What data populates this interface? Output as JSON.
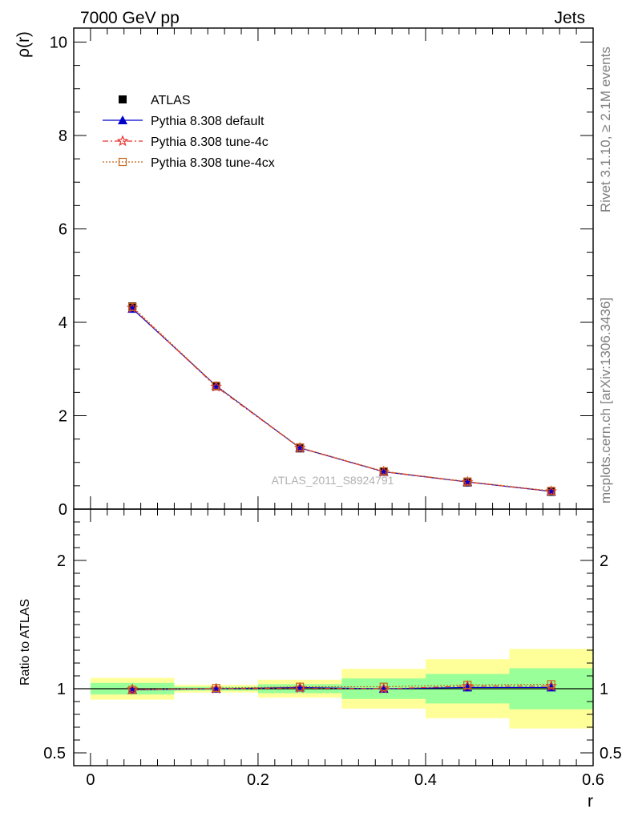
{
  "header": {
    "left": "7000 GeV pp",
    "right": "Jets"
  },
  "side_labels": {
    "top": "Rivet 3.1.10, ≥ 2.1M events",
    "bottom": "mcplots.cern.ch [arXiv:1306.3436]"
  },
  "watermark": "ATLAS_2011_S8924791",
  "colors": {
    "atlas": "#000000",
    "default": "#0000cc",
    "tune4c": "#e8312f",
    "tune4cx": "#c5661b",
    "band_inner": "#99ff99",
    "band_outer": "#ffff99"
  },
  "legend": {
    "position": "top-left",
    "entries": [
      {
        "key": "atlas",
        "label": "ATLAS"
      },
      {
        "key": "default",
        "label": "Pythia 8.308 default"
      },
      {
        "key": "tune4c",
        "label": "Pythia 8.308 tune-4c"
      },
      {
        "key": "tune4cx",
        "label": "Pythia 8.308 tune-4cx"
      }
    ]
  },
  "chart_data": [
    {
      "type": "line",
      "panel": "main",
      "ylabel": "ρ(r)",
      "xlim": [
        -0.02,
        0.6
      ],
      "ylim": [
        0,
        10.3
      ],
      "yticks": [
        0,
        2,
        4,
        6,
        8,
        10
      ],
      "ytick_labels": [
        "0",
        "2",
        "4",
        "6",
        "8",
        "10"
      ],
      "x": [
        0.05,
        0.15,
        0.25,
        0.35,
        0.45,
        0.55
      ],
      "series": [
        {
          "key": "atlas",
          "name": "ATLAS",
          "values": [
            4.34,
            2.63,
            1.3,
            0.8,
            0.57,
            0.37
          ]
        },
        {
          "key": "default",
          "name": "Pythia 8.308 default",
          "values": [
            4.29,
            2.64,
            1.31,
            0.8,
            0.58,
            0.38
          ]
        },
        {
          "key": "tune4c",
          "name": "Pythia 8.308 tune-4c",
          "values": [
            4.31,
            2.62,
            1.31,
            0.8,
            0.58,
            0.38
          ]
        },
        {
          "key": "tune4cx",
          "name": "Pythia 8.308 tune-4cx",
          "values": [
            4.33,
            2.64,
            1.32,
            0.81,
            0.59,
            0.39
          ]
        }
      ]
    },
    {
      "type": "line",
      "panel": "ratio",
      "xlabel": "r",
      "ylabel": "Ratio to ATLAS",
      "xlim": [
        -0.02,
        0.6
      ],
      "ylim": [
        0.4,
        2.4
      ],
      "xticks": [
        0,
        0.2,
        0.4,
        0.6
      ],
      "xtick_labels": [
        "0",
        "0.2",
        "0.4",
        "0.6"
      ],
      "yticks": [
        0.5,
        1,
        2
      ],
      "ytick_labels": [
        "0.5",
        "1",
        "2"
      ],
      "x": [
        0.05,
        0.15,
        0.25,
        0.35,
        0.45,
        0.55
      ],
      "bins": [
        [
          0,
          0.1
        ],
        [
          0.1,
          0.2
        ],
        [
          0.2,
          0.3
        ],
        [
          0.3,
          0.4
        ],
        [
          0.4,
          0.5
        ],
        [
          0.5,
          0.6
        ]
      ],
      "band_inner": [
        [
          0.955,
          1.045
        ],
        [
          0.985,
          1.015
        ],
        [
          0.965,
          1.035
        ],
        [
          0.92,
          1.08
        ],
        [
          0.885,
          1.115
        ],
        [
          0.84,
          1.16
        ]
      ],
      "band_outer": [
        [
          0.915,
          1.085
        ],
        [
          0.97,
          1.03
        ],
        [
          0.93,
          1.07
        ],
        [
          0.845,
          1.155
        ],
        [
          0.77,
          1.23
        ],
        [
          0.69,
          1.31
        ]
      ],
      "series": [
        {
          "key": "default",
          "name": "Pythia 8.308 default",
          "values": [
            0.99,
            1.0,
            1.01,
            1.0,
            1.01,
            1.01
          ]
        },
        {
          "key": "tune4c",
          "name": "Pythia 8.308 tune-4c",
          "values": [
            0.995,
            1.0,
            1.005,
            1.0,
            1.02,
            1.02
          ]
        },
        {
          "key": "tune4cx",
          "name": "Pythia 8.308 tune-4cx",
          "values": [
            0.99,
            1.005,
            1.015,
            1.015,
            1.03,
            1.035
          ]
        }
      ]
    }
  ]
}
